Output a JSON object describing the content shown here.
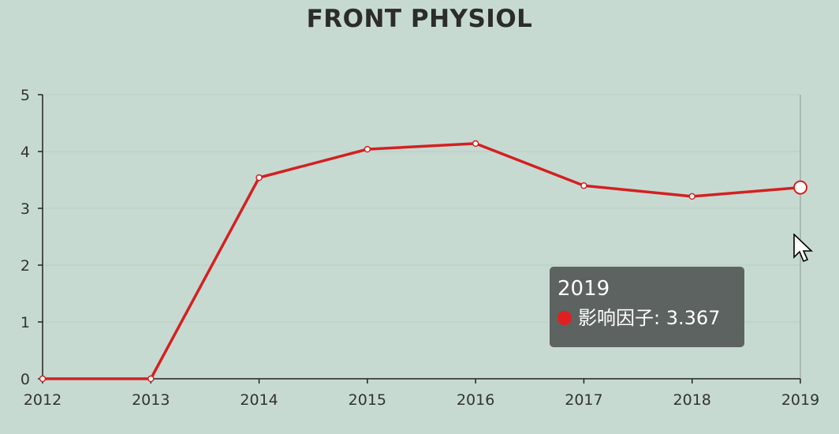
{
  "chart_data": {
    "type": "line",
    "title": "FRONT PHYSIOL",
    "categories": [
      "2012",
      "2013",
      "2014",
      "2015",
      "2016",
      "2017",
      "2018",
      "2019"
    ],
    "series": [
      {
        "name": "影响因子",
        "values": [
          0,
          0,
          3.54,
          4.04,
          4.14,
          3.4,
          3.21,
          3.367
        ]
      }
    ],
    "ylim": [
      0,
      5
    ],
    "yticks": [
      "0",
      "1",
      "2",
      "3",
      "4",
      "5"
    ],
    "grid": true,
    "line_color": "#d42020",
    "background": "#c6dad2"
  },
  "tooltip": {
    "title": "2019",
    "series_label": "影响因子: 3.367",
    "dot_color": "#e02020"
  },
  "hover_index": 7
}
